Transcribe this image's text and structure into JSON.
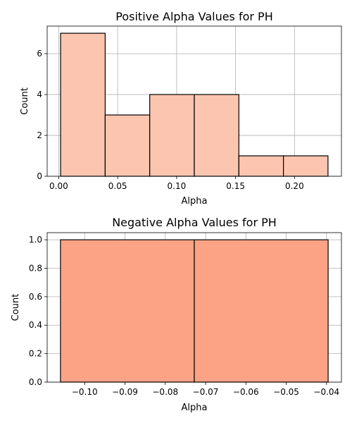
{
  "chart_data": [
    {
      "type": "bar",
      "title": "Positive Alpha Values for PH",
      "xlabel": "Alpha",
      "ylabel": "Count",
      "bin_edges": [
        0.0016,
        0.0394,
        0.0772,
        0.115,
        0.1528,
        0.1906,
        0.2284
      ],
      "values": [
        7,
        3,
        4,
        4,
        1,
        1
      ],
      "xlim": [
        -0.0098,
        0.2398
      ],
      "ylim": [
        0,
        7.35
      ],
      "xticks": [
        0.0,
        0.05,
        0.1,
        0.15,
        0.2
      ],
      "xtick_labels": [
        "0.00",
        "0.05",
        "0.10",
        "0.15",
        "0.20"
      ],
      "yticks": [
        0,
        2,
        4,
        6
      ],
      "ytick_labels": [
        "0",
        "2",
        "4",
        "6"
      ],
      "grid": true,
      "bar_color": "#fcc5b0",
      "edge_color": "#000000"
    },
    {
      "type": "bar",
      "title": "Negative Alpha Values for PH",
      "xlabel": "Alpha",
      "ylabel": "Count",
      "bin_edges": [
        -0.106,
        -0.0728,
        -0.0396
      ],
      "values": [
        1,
        1
      ],
      "xlim": [
        -0.1093,
        -0.0363
      ],
      "ylim": [
        0,
        1.05
      ],
      "xticks": [
        -0.1,
        -0.09,
        -0.08,
        -0.07,
        -0.06,
        -0.05,
        -0.04
      ],
      "xtick_labels": [
        "−0.10",
        "−0.09",
        "−0.08",
        "−0.07",
        "−0.06",
        "−0.05",
        "−0.04"
      ],
      "yticks": [
        0,
        0.2,
        0.4,
        0.6,
        0.8,
        1.0
      ],
      "ytick_labels": [
        "0.0",
        "0.2",
        "0.4",
        "0.6",
        "0.8",
        "1.0"
      ],
      "grid": true,
      "bar_color": "#fca385",
      "edge_color": "#000000"
    }
  ]
}
